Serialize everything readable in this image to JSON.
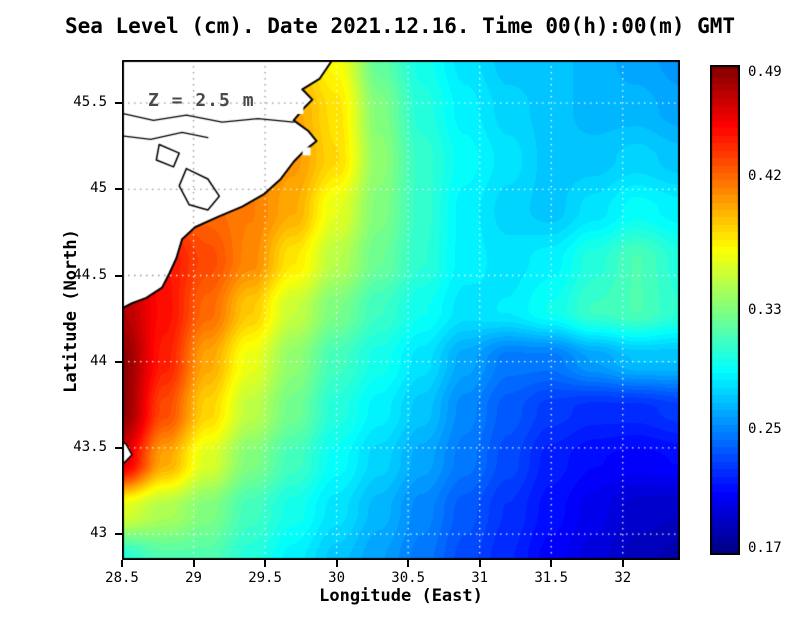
{
  "title": "Sea Level (cm). Date 2021.12.16. Time 00(h):00(m) GMT",
  "annotation": "Z = 2.5 m",
  "axes": {
    "xlabel": "Longitude (East)",
    "ylabel": "Latitude (North)",
    "xlim": [
      28.5,
      32.4
    ],
    "ylim": [
      42.85,
      45.75
    ],
    "x_ticks": [
      28.5,
      29,
      29.5,
      30,
      30.5,
      31,
      31.5,
      32
    ],
    "x_tick_labels": [
      "28.5",
      "29",
      "29.5",
      "30",
      "30.5",
      "31",
      "31.5",
      "32"
    ],
    "y_ticks": [
      43,
      43.5,
      44,
      44.5,
      45,
      45.5
    ],
    "y_tick_labels": [
      "43",
      "43.5",
      "44",
      "44.5",
      "45",
      "45.5"
    ],
    "grid": "dotted"
  },
  "colorbar": {
    "vmin": 0.165,
    "vmax": 0.495,
    "labels": [
      {
        "text": "0.49",
        "value": 0.49
      },
      {
        "text": "0.42",
        "value": 0.42
      },
      {
        "text": "0.33",
        "value": 0.33
      },
      {
        "text": "0.25",
        "value": 0.25
      },
      {
        "text": "0.17",
        "value": 0.17
      }
    ]
  },
  "chart_data": {
    "type": "heatmap",
    "title": "Sea Level (cm). Date 2021.12.16. Time 00(h):00(m) GMT",
    "xlabel": "Longitude (East)",
    "ylabel": "Latitude (North)",
    "colormap": "jet",
    "band_step": 0.005,
    "lons": [
      28.5,
      28.8,
      29.1,
      29.4,
      29.7,
      30.0,
      30.3,
      30.6,
      30.9,
      31.2,
      31.5,
      31.8,
      32.1,
      32.4
    ],
    "lats": [
      42.85,
      43.14,
      43.43,
      43.72,
      44.01,
      44.3,
      44.59,
      44.88,
      45.17,
      45.46,
      45.75
    ],
    "values": [
      [
        0.3,
        0.315,
        0.315,
        0.3,
        0.285,
        0.27,
        0.258,
        0.245,
        0.23,
        0.218,
        0.205,
        0.195,
        0.185,
        0.18
      ],
      [
        0.36,
        0.345,
        0.33,
        0.31,
        0.295,
        0.28,
        0.265,
        0.25,
        0.235,
        0.222,
        0.21,
        0.2,
        0.19,
        0.188
      ],
      [
        0.465,
        0.4,
        0.36,
        0.33,
        0.31,
        0.29,
        0.275,
        0.26,
        0.245,
        0.23,
        0.215,
        0.208,
        0.205,
        0.208
      ],
      [
        0.49,
        0.43,
        0.385,
        0.35,
        0.325,
        0.3,
        0.285,
        0.27,
        0.25,
        0.235,
        0.225,
        0.22,
        0.22,
        0.225
      ],
      [
        0.49,
        0.445,
        0.4,
        0.365,
        0.335,
        0.31,
        0.295,
        0.28,
        0.26,
        0.245,
        0.245,
        0.258,
        0.268,
        0.268
      ],
      [
        0.478,
        0.45,
        0.42,
        0.388,
        0.353,
        0.328,
        0.308,
        0.293,
        0.28,
        0.283,
        0.293,
        0.308,
        0.313,
        0.303
      ],
      [
        0.455,
        0.448,
        0.43,
        0.41,
        0.378,
        0.348,
        0.323,
        0.303,
        0.285,
        0.28,
        0.285,
        0.3,
        0.313,
        0.3
      ],
      [
        0.43,
        0.43,
        0.42,
        0.413,
        0.398,
        0.363,
        0.33,
        0.305,
        0.285,
        0.275,
        0.27,
        0.28,
        0.29,
        0.285
      ],
      [
        0.42,
        0.42,
        0.412,
        0.41,
        0.404,
        0.383,
        0.335,
        0.305,
        0.29,
        0.28,
        0.27,
        0.27,
        0.275,
        0.27
      ],
      [
        0.41,
        0.41,
        0.405,
        0.4,
        0.4,
        0.38,
        0.33,
        0.3,
        0.285,
        0.275,
        0.27,
        0.265,
        0.265,
        0.26
      ],
      [
        0.4,
        0.4,
        0.4,
        0.395,
        0.39,
        0.37,
        0.32,
        0.295,
        0.28,
        0.27,
        0.27,
        0.265,
        0.26,
        0.255
      ]
    ],
    "coastline": [
      [
        29.97,
        45.75
      ],
      [
        29.88,
        45.64
      ],
      [
        29.76,
        45.58
      ],
      [
        29.83,
        45.52
      ],
      [
        29.77,
        45.47
      ],
      [
        29.7,
        45.4
      ],
      [
        29.8,
        45.34
      ],
      [
        29.86,
        45.28
      ],
      [
        29.77,
        45.22
      ],
      [
        29.7,
        45.16
      ],
      [
        29.61,
        45.06
      ],
      [
        29.49,
        44.97
      ],
      [
        29.34,
        44.9
      ],
      [
        29.17,
        44.84
      ],
      [
        29.01,
        44.78
      ],
      [
        28.92,
        44.71
      ],
      [
        28.88,
        44.6
      ],
      [
        28.83,
        44.51
      ],
      [
        28.78,
        44.43
      ],
      [
        28.67,
        44.37
      ],
      [
        28.57,
        44.34
      ],
      [
        28.5,
        44.31
      ]
    ],
    "lakes": [
      [
        [
          28.95,
          45.12
        ],
        [
          29.1,
          45.06
        ],
        [
          29.18,
          44.96
        ],
        [
          29.1,
          44.88
        ],
        [
          28.97,
          44.91
        ],
        [
          28.9,
          45.02
        ],
        [
          28.95,
          45.12
        ]
      ],
      [
        [
          28.76,
          45.26
        ],
        [
          28.9,
          45.21
        ],
        [
          28.86,
          45.13
        ],
        [
          28.74,
          45.17
        ],
        [
          28.76,
          45.26
        ]
      ]
    ],
    "rivers": [
      [
        [
          28.5,
          45.44
        ],
        [
          28.72,
          45.4
        ],
        [
          28.95,
          45.43
        ],
        [
          29.2,
          45.39
        ],
        [
          29.45,
          45.41
        ],
        [
          29.7,
          45.39
        ]
      ],
      [
        [
          28.5,
          45.31
        ],
        [
          28.7,
          45.29
        ],
        [
          28.92,
          45.33
        ],
        [
          29.1,
          45.3
        ]
      ]
    ],
    "cape": [
      [
        28.5,
        43.4
      ],
      [
        28.57,
        43.46
      ],
      [
        28.53,
        43.52
      ],
      [
        28.5,
        43.54
      ]
    ],
    "masked_cells": [
      [
        29.74,
        45.46
      ],
      [
        29.79,
        45.22
      ]
    ]
  }
}
